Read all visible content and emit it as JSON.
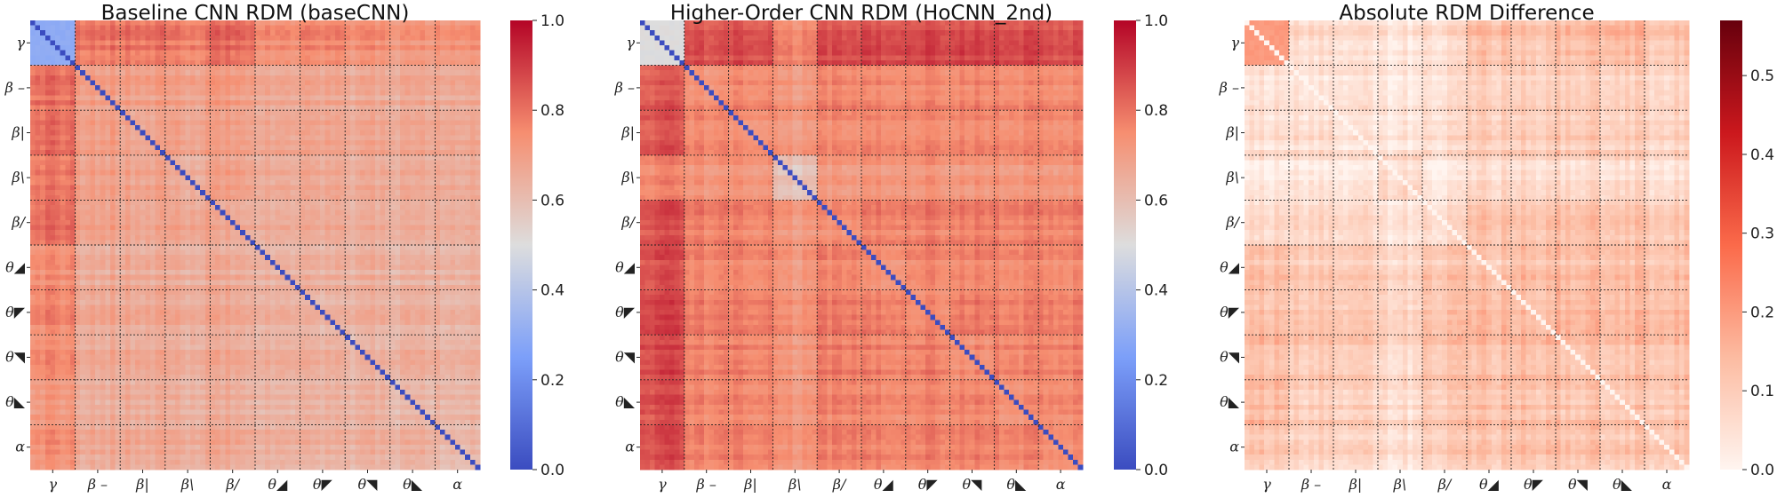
{
  "chart_data": [
    {
      "type": "heatmap",
      "title": "Baseline CNN RDM (baseCNN)",
      "xticks": [
        "γ",
        "β –",
        "β|",
        "β\\",
        "β/",
        "θ◢",
        "θ◤",
        "θ◥",
        "θ◣",
        "α"
      ],
      "yticks": [
        "γ",
        "β –",
        "β|",
        "β\\",
        "β/",
        "θ◢",
        "θ◤",
        "θ◥",
        "θ◣",
        "α"
      ],
      "colormap": "coolwarm",
      "clim": [
        0.0,
        1.0
      ],
      "colorbar_ticks": [
        "0.0",
        "0.2",
        "0.4",
        "0.6",
        "0.8",
        "1.0"
      ],
      "n_items": 90,
      "block_size": 9,
      "diagonal_value": 0.0,
      "block_values": [
        [
          0.3,
          0.8,
          0.8,
          0.78,
          0.82,
          0.74,
          0.76,
          0.74,
          0.72,
          0.74
        ],
        [
          0.8,
          0.7,
          0.7,
          0.69,
          0.71,
          0.66,
          0.67,
          0.66,
          0.66,
          0.67
        ],
        [
          0.8,
          0.7,
          0.67,
          0.68,
          0.69,
          0.66,
          0.67,
          0.66,
          0.66,
          0.67
        ],
        [
          0.78,
          0.69,
          0.68,
          0.65,
          0.69,
          0.65,
          0.66,
          0.65,
          0.65,
          0.66
        ],
        [
          0.82,
          0.71,
          0.69,
          0.69,
          0.68,
          0.66,
          0.67,
          0.66,
          0.66,
          0.67
        ],
        [
          0.74,
          0.66,
          0.66,
          0.65,
          0.66,
          0.63,
          0.64,
          0.64,
          0.63,
          0.64
        ],
        [
          0.76,
          0.67,
          0.67,
          0.66,
          0.67,
          0.64,
          0.63,
          0.64,
          0.64,
          0.64
        ],
        [
          0.74,
          0.66,
          0.66,
          0.65,
          0.66,
          0.64,
          0.64,
          0.62,
          0.64,
          0.64
        ],
        [
          0.72,
          0.66,
          0.66,
          0.65,
          0.66,
          0.63,
          0.64,
          0.64,
          0.62,
          0.64
        ],
        [
          0.74,
          0.67,
          0.67,
          0.66,
          0.67,
          0.64,
          0.64,
          0.64,
          0.64,
          0.62
        ]
      ]
    },
    {
      "type": "heatmap",
      "title": "Higher-Order CNN RDM (HoCNN_2nd)",
      "xticks": [
        "γ",
        "β –",
        "β|",
        "β\\",
        "β/",
        "θ◢",
        "θ◤",
        "θ◥",
        "θ◣",
        "α"
      ],
      "yticks": [
        "γ",
        "β –",
        "β|",
        "β\\",
        "β/",
        "θ◢",
        "θ◤",
        "θ◥",
        "θ◣",
        "α"
      ],
      "colormap": "coolwarm",
      "clim": [
        0.0,
        1.0
      ],
      "colorbar_ticks": [
        "0.0",
        "0.2",
        "0.4",
        "0.6",
        "0.8",
        "1.0"
      ],
      "n_items": 90,
      "block_size": 9,
      "diagonal_value": 0.0,
      "block_values": [
        [
          0.5,
          0.85,
          0.86,
          0.76,
          0.86,
          0.87,
          0.88,
          0.88,
          0.87,
          0.86
        ],
        [
          0.85,
          0.74,
          0.76,
          0.72,
          0.77,
          0.76,
          0.77,
          0.77,
          0.76,
          0.76
        ],
        [
          0.86,
          0.76,
          0.74,
          0.72,
          0.76,
          0.76,
          0.77,
          0.77,
          0.76,
          0.76
        ],
        [
          0.76,
          0.72,
          0.72,
          0.58,
          0.71,
          0.72,
          0.73,
          0.72,
          0.72,
          0.72
        ],
        [
          0.86,
          0.77,
          0.76,
          0.71,
          0.74,
          0.77,
          0.78,
          0.78,
          0.77,
          0.77
        ],
        [
          0.87,
          0.76,
          0.76,
          0.72,
          0.77,
          0.74,
          0.77,
          0.77,
          0.76,
          0.76
        ],
        [
          0.88,
          0.77,
          0.77,
          0.73,
          0.78,
          0.77,
          0.75,
          0.78,
          0.77,
          0.77
        ],
        [
          0.88,
          0.77,
          0.77,
          0.72,
          0.78,
          0.77,
          0.78,
          0.75,
          0.77,
          0.77
        ],
        [
          0.87,
          0.76,
          0.76,
          0.72,
          0.77,
          0.76,
          0.77,
          0.77,
          0.74,
          0.76
        ],
        [
          0.86,
          0.76,
          0.76,
          0.72,
          0.77,
          0.76,
          0.77,
          0.77,
          0.76,
          0.74
        ]
      ]
    },
    {
      "type": "heatmap",
      "title": "Absolute RDM Difference",
      "xticks": [
        "γ",
        "β –",
        "β|",
        "β\\",
        "β/",
        "θ◢",
        "θ◤",
        "θ◥",
        "θ◣",
        "α"
      ],
      "yticks": [
        "γ",
        "β –",
        "β|",
        "β\\",
        "β/",
        "θ◢",
        "θ◤",
        "θ◥",
        "θ◣",
        "α"
      ],
      "colormap": "Reds",
      "clim": [
        0.0,
        0.57
      ],
      "colorbar_ticks": [
        "0.0",
        "0.1",
        "0.2",
        "0.3",
        "0.4",
        "0.5"
      ],
      "n_items": 90,
      "block_size": 9,
      "diagonal_value": 0.0,
      "block_values": [
        [
          0.2,
          0.06,
          0.06,
          0.04,
          0.06,
          0.13,
          0.12,
          0.14,
          0.15,
          0.12
        ],
        [
          0.06,
          0.05,
          0.06,
          0.04,
          0.06,
          0.1,
          0.1,
          0.11,
          0.1,
          0.09
        ],
        [
          0.06,
          0.06,
          0.05,
          0.04,
          0.06,
          0.1,
          0.1,
          0.11,
          0.1,
          0.09
        ],
        [
          0.04,
          0.04,
          0.04,
          0.07,
          0.03,
          0.07,
          0.07,
          0.07,
          0.07,
          0.06
        ],
        [
          0.06,
          0.06,
          0.06,
          0.03,
          0.05,
          0.11,
          0.11,
          0.12,
          0.11,
          0.1
        ],
        [
          0.13,
          0.1,
          0.1,
          0.07,
          0.11,
          0.11,
          0.13,
          0.13,
          0.13,
          0.12
        ],
        [
          0.12,
          0.1,
          0.1,
          0.07,
          0.11,
          0.13,
          0.12,
          0.14,
          0.13,
          0.13
        ],
        [
          0.14,
          0.11,
          0.11,
          0.07,
          0.12,
          0.13,
          0.14,
          0.13,
          0.13,
          0.13
        ],
        [
          0.15,
          0.1,
          0.1,
          0.07,
          0.11,
          0.13,
          0.13,
          0.13,
          0.12,
          0.12
        ],
        [
          0.12,
          0.09,
          0.09,
          0.06,
          0.1,
          0.12,
          0.13,
          0.13,
          0.12,
          0.12
        ]
      ]
    }
  ]
}
